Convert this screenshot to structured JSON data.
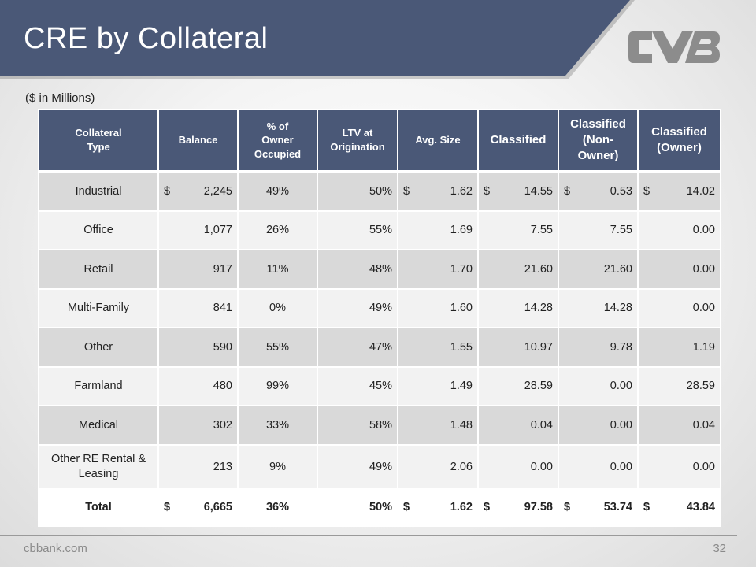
{
  "slide": {
    "title": "CRE by Collateral",
    "subtitle": "($ in Millions)",
    "footer_url": "cbbank.com",
    "page_number": "32",
    "brand_color": "#4a5877",
    "logo_icon": "cvb-logo-icon"
  },
  "table": {
    "headers": [
      {
        "line1": "Collateral",
        "line2": "Type"
      },
      {
        "line1": "Balance",
        "line2": ""
      },
      {
        "line1": "% of",
        "line2": "Owner",
        "line3": "Occupied"
      },
      {
        "line1": "LTV at",
        "line2": "Origination"
      },
      {
        "line1": "Avg. Size",
        "line2": ""
      },
      {
        "line1": "Classified",
        "line2": ""
      },
      {
        "line1": "Classified",
        "line2": "(Non-",
        "line3": "Owner)"
      },
      {
        "line1": "Classified",
        "line2": "(Owner)"
      }
    ],
    "rows": [
      {
        "type": "Industrial",
        "balance_sym": "$",
        "balance": "2,245",
        "owner_occ": "49%",
        "ltv": "50%",
        "avg_sym": "$",
        "avg_size": "1.62",
        "class_sym": "$",
        "classified": "14.55",
        "non_sym": "$",
        "non_owner": "0.53",
        "own_sym": "$",
        "owner": "14.02"
      },
      {
        "type": "Office",
        "balance_sym": "",
        "balance": "1,077",
        "owner_occ": "26%",
        "ltv": "55%",
        "avg_sym": "",
        "avg_size": "1.69",
        "class_sym": "",
        "classified": "7.55",
        "non_sym": "",
        "non_owner": "7.55",
        "own_sym": "",
        "owner": "0.00"
      },
      {
        "type": "Retail",
        "balance_sym": "",
        "balance": "917",
        "owner_occ": "11%",
        "ltv": "48%",
        "avg_sym": "",
        "avg_size": "1.70",
        "class_sym": "",
        "classified": "21.60",
        "non_sym": "",
        "non_owner": "21.60",
        "own_sym": "",
        "owner": "0.00"
      },
      {
        "type": "Multi-Family",
        "balance_sym": "",
        "balance": "841",
        "owner_occ": "0%",
        "ltv": "49%",
        "avg_sym": "",
        "avg_size": "1.60",
        "class_sym": "",
        "classified": "14.28",
        "non_sym": "",
        "non_owner": "14.28",
        "own_sym": "",
        "owner": "0.00"
      },
      {
        "type": "Other",
        "balance_sym": "",
        "balance": "590",
        "owner_occ": "55%",
        "ltv": "47%",
        "avg_sym": "",
        "avg_size": "1.55",
        "class_sym": "",
        "classified": "10.97",
        "non_sym": "",
        "non_owner": "9.78",
        "own_sym": "",
        "owner": "1.19"
      },
      {
        "type": "Farmland",
        "balance_sym": "",
        "balance": "480",
        "owner_occ": "99%",
        "ltv": "45%",
        "avg_sym": "",
        "avg_size": "1.49",
        "class_sym": "",
        "classified": "28.59",
        "non_sym": "",
        "non_owner": "0.00",
        "own_sym": "",
        "owner": "28.59"
      },
      {
        "type": "Medical",
        "balance_sym": "",
        "balance": "302",
        "owner_occ": "33%",
        "ltv": "58%",
        "avg_sym": "",
        "avg_size": "1.48",
        "class_sym": "",
        "classified": "0.04",
        "non_sym": "",
        "non_owner": "0.00",
        "own_sym": "",
        "owner": "0.04"
      },
      {
        "type": "Other RE Rental & Leasing",
        "balance_sym": "",
        "balance": "213",
        "owner_occ": "9%",
        "ltv": "49%",
        "avg_sym": "",
        "avg_size": "2.06",
        "class_sym": "",
        "classified": "0.00",
        "non_sym": "",
        "non_owner": "0.00",
        "own_sym": "",
        "owner": "0.00"
      }
    ],
    "total": {
      "type": "Total",
      "balance_sym": "$",
      "balance": "6,665",
      "owner_occ": "36%",
      "ltv": "50%",
      "avg_sym": "$",
      "avg_size": "1.62",
      "class_sym": "$",
      "classified": "97.58",
      "non_sym": "$",
      "non_owner": "53.74",
      "own_sym": "$",
      "owner": "43.84"
    }
  }
}
